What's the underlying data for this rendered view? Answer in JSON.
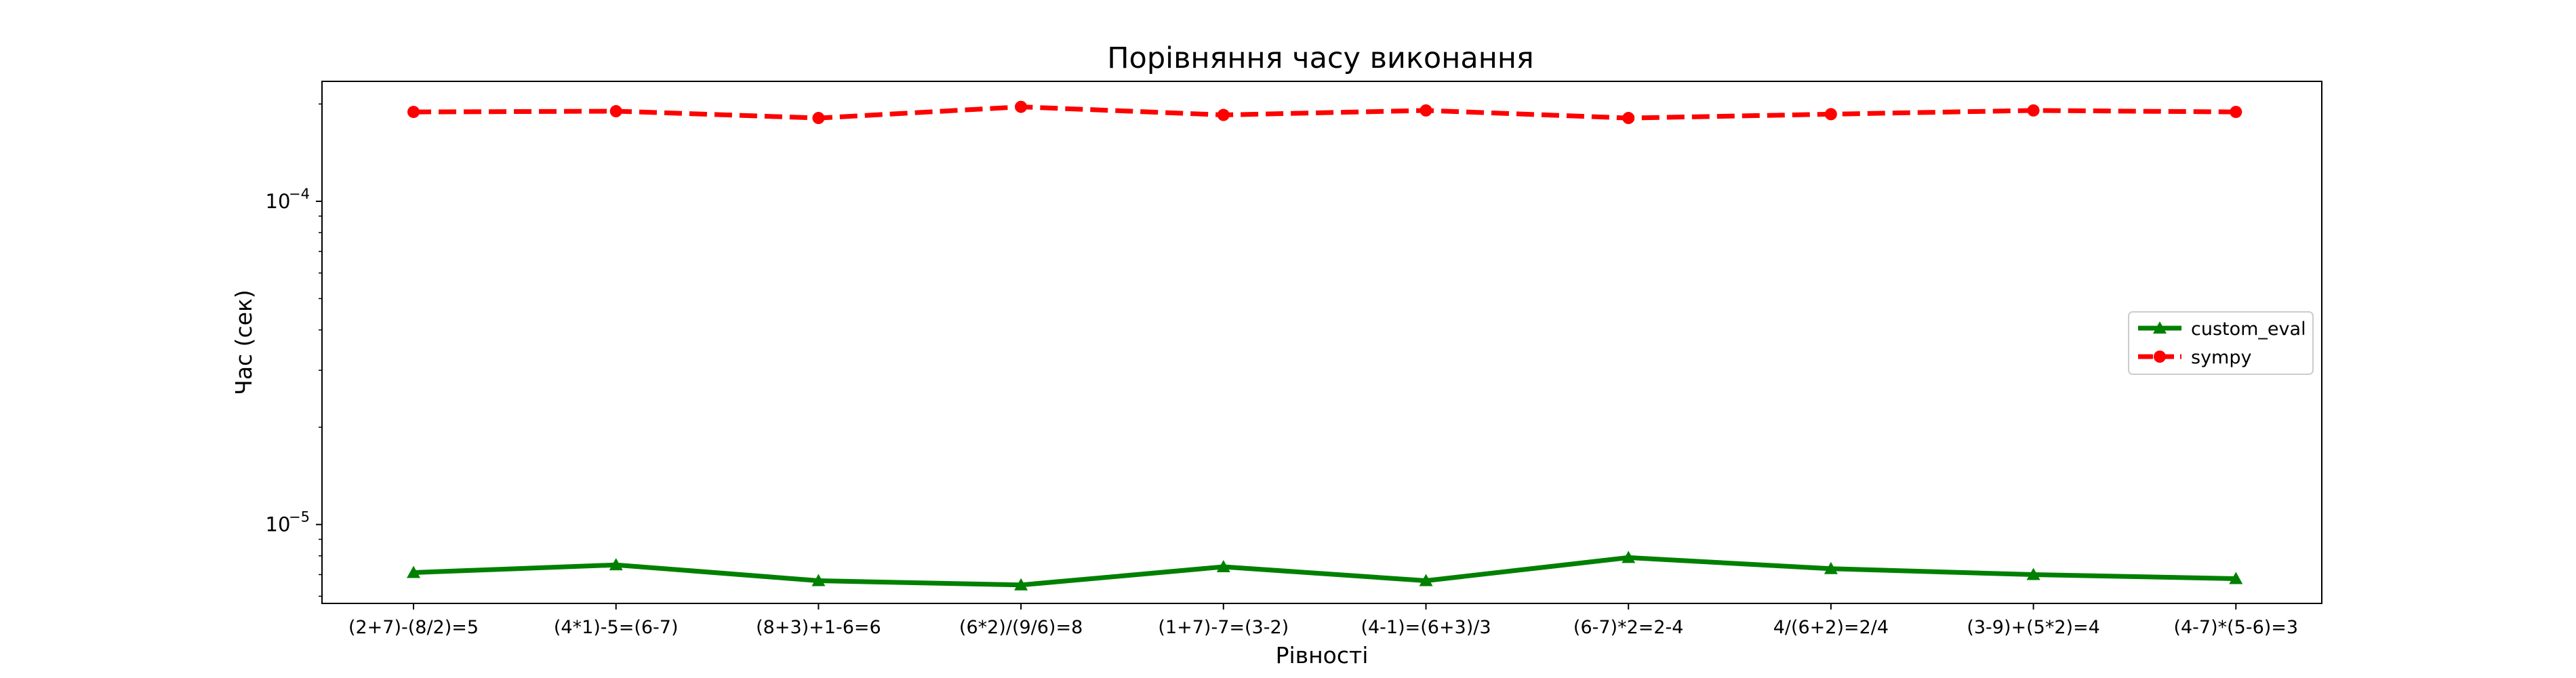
{
  "chart_data": {
    "type": "line",
    "title": "Порівняння часу виконання",
    "xlabel": "Рівності",
    "ylabel": "Час (сек)",
    "yscale": "log",
    "ylim": [
      5.7e-06,
      0.000235
    ],
    "yticks": [
      {
        "value": 1e-05,
        "base": "10",
        "exp": "−5"
      },
      {
        "value": 0.0001,
        "base": "10",
        "exp": "−4"
      }
    ],
    "categories": [
      "(2+7)-(8/2)=5",
      "(4*1)-5=(6-7)",
      "(8+3)+1-6=6",
      "(6*2)/(9/6)=8",
      "(1+7)-7=(3-2)",
      "(4-1)=(6+3)/3",
      "(6-7)*2=2-4",
      "4/(6+2)=2/4",
      "(3-9)+(5*2)=4",
      "(4-7)*(5-6)=3"
    ],
    "series": [
      {
        "name": "custom_eval",
        "color": "#008000",
        "linestyle": "solid",
        "marker": "triangle",
        "values": [
          7.1e-06,
          7.5e-06,
          6.7e-06,
          6.5e-06,
          7.4e-06,
          6.7e-06,
          7.9e-06,
          7.3e-06,
          7e-06,
          6.8e-06
        ]
      },
      {
        "name": "sympy",
        "color": "#ff0000",
        "linestyle": "dashed",
        "marker": "circle",
        "values": [
          0.000189,
          0.00019,
          0.000181,
          0.000196,
          0.000185,
          0.000191,
          0.000181,
          0.000186,
          0.000191,
          0.000189
        ]
      }
    ],
    "legend_position": "center-right",
    "grid": false
  }
}
